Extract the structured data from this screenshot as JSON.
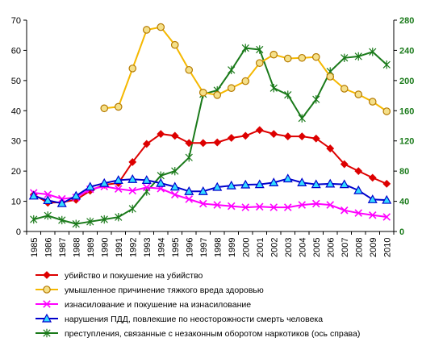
{
  "chart_data": {
    "type": "line",
    "title": "",
    "xlabel": "",
    "ylabel": "",
    "x": [
      "1985",
      "1986",
      "1987",
      "1988",
      "1989",
      "1990",
      "1991",
      "1992",
      "1993",
      "1994",
      "1995",
      "1996",
      "1997",
      "1998",
      "1999",
      "2000",
      "2001",
      "2002",
      "2003",
      "2004",
      "2005",
      "2006",
      "2007",
      "2008",
      "2009",
      "2010"
    ],
    "y_left": {
      "min": 0,
      "max": 70,
      "ticks": [
        "0",
        "10",
        "20",
        "30",
        "40",
        "50",
        "60",
        "70"
      ]
    },
    "y_right": {
      "min": 0,
      "max": 280,
      "ticks": [
        "0",
        "40",
        "80",
        "120",
        "160",
        "200",
        "240",
        "280"
      ],
      "color": "#1a7a1a"
    },
    "legend_position": "bottom",
    "gridlines": false,
    "series": [
      {
        "name": "убийство и покушение на убийство",
        "axis": "left",
        "color": "#dd0000",
        "marker": "diamond",
        "values": [
          12.2,
          9.5,
          9.7,
          10.5,
          13.5,
          15.5,
          16.0,
          23.0,
          29.0,
          32.3,
          31.7,
          29.3,
          29.3,
          29.5,
          31.0,
          31.7,
          33.6,
          32.3,
          31.5,
          31.5,
          30.8,
          27.5,
          22.3,
          20.0,
          17.8,
          15.8
        ]
      },
      {
        "name": "умышленное причинение тяжкого вреда здоровью",
        "axis": "left",
        "color": "#f5b800",
        "marker": "circle",
        "values": [
          null,
          null,
          null,
          null,
          null,
          40.8,
          41.3,
          54.0,
          66.8,
          67.7,
          61.8,
          53.5,
          46.0,
          45.2,
          47.5,
          49.8,
          55.8,
          58.6,
          57.3,
          57.5,
          57.8,
          51.3,
          47.3,
          45.4,
          43.0,
          39.8
        ]
      },
      {
        "name": "изнасилование и покушение на изнасилование",
        "axis": "left",
        "color": "#ff00ff",
        "marker": "x",
        "values": [
          12.8,
          12.3,
          10.8,
          11.3,
          14.0,
          14.9,
          14.1,
          13.5,
          14.6,
          14.2,
          12.2,
          10.7,
          9.2,
          8.8,
          8.4,
          8.0,
          8.2,
          8.0,
          8.0,
          8.8,
          9.2,
          8.8,
          7.0,
          6.1,
          5.4,
          4.8
        ]
      },
      {
        "name": "нарушения ПДД, повлекшие по неосторожности смерть человека",
        "axis": "left",
        "color": "#0000cc",
        "marker": "triangle",
        "values": [
          11.8,
          10.3,
          9.3,
          11.8,
          14.8,
          16.0,
          17.0,
          17.3,
          17.0,
          16.0,
          14.8,
          13.3,
          13.3,
          14.7,
          15.2,
          15.5,
          15.6,
          16.2,
          17.5,
          16.2,
          15.6,
          15.8,
          15.6,
          13.6,
          10.6,
          10.4
        ]
      },
      {
        "name": "преступления, связанные с незаконным оборотом наркотиков (ось справа)",
        "axis": "right",
        "color": "#1a7a1a",
        "marker": "star",
        "values": [
          16,
          21,
          15,
          10,
          13,
          16,
          19,
          30,
          53,
          74,
          80,
          98,
          182,
          187,
          214,
          243,
          241,
          190,
          181,
          150,
          175,
          212,
          230,
          232,
          238,
          221
        ]
      }
    ]
  }
}
